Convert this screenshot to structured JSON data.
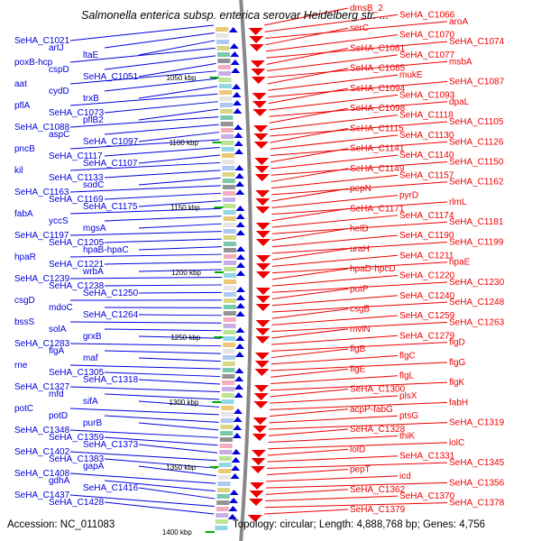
{
  "title": "Salmonella enterica subsp. enterica serovar Heidelberg str. ...",
  "footer": {
    "accession": "Accession: NC_011083",
    "topology": "Topology: circular; Length: 4,888,768 bp; Genes: 4,756"
  },
  "colors": {
    "forward_strand": "#0000dd",
    "reverse_strand": "#ee0000",
    "backbone": "#888888",
    "tick": "#00aa00"
  },
  "scale_ticks": [
    "1050 kbp",
    "1100 kbp",
    "1150 kbp",
    "1200 kbp",
    "1250 kbp",
    "1300 kbp",
    "1350 kbp",
    "1400 kbp"
  ],
  "left_labels": [
    "SeHA_C1021",
    "artJ",
    "ltaE",
    "poxB-hcp",
    "cspD",
    "SeHA_C1051",
    "aat",
    "cydD",
    "trxB",
    "pflA",
    "SeHA_C1073",
    "pflB2",
    "SeHA_C1088",
    "aspC",
    "SeHA_C1097",
    "pncB",
    "SeHA_C1117",
    "SeHA_C1107",
    "kil",
    "SeHA_C1133",
    "sodC",
    "SeHA_C1163",
    "SeHA_C1169",
    "SeHA_C1175",
    "fabA",
    "yccS",
    "mgsA",
    "SeHA_C1197",
    "SeHA_C1205",
    "hpaB-hpaC",
    "hpaR",
    "SeHA_C1221",
    "wrbA",
    "SeHA_C1239",
    "SeHA_C1238",
    "SeHA_C1250",
    "csgD",
    "mdoC",
    "SeHA_C1264",
    "bssS",
    "solA",
    "grxB",
    "SeHA_C1283",
    "flgA",
    "maf",
    "rne",
    "SeHA_C1305",
    "SeHA_C1318",
    "SeHA_C1327",
    "mfd",
    "sifA",
    "potC",
    "potD",
    "purB",
    "SeHA_C1348",
    "SeHA_C1359",
    "SeHA_C1373",
    "SeHA_C1402",
    "SeHA_C1383",
    "gapA",
    "SeHA_C1408",
    "gdhA",
    "SeHA_C1416",
    "SeHA_C1437",
    "SeHA_C1428"
  ],
  "right_labels": [
    "dmsB_2",
    "SeHA_C1066",
    "aroA",
    "serC",
    "SeHA_C1070",
    "SeHA_C1074",
    "SeHA_C1081",
    "SeHA_C1077",
    "msbA",
    "SeHA_C1085",
    "mukE",
    "SeHA_C1087",
    "SeHA_C1094",
    "SeHA_C1093",
    "dpaL",
    "SeHA_C1098",
    "SeHA_C1118",
    "SeHA_C1105",
    "SeHA_C1115",
    "SeHA_C1130",
    "SeHA_C1126",
    "SeHA_C1141",
    "SeHA_C1140",
    "SeHA_C1150",
    "SeHA_C1149",
    "SeHA_C1157",
    "SeHA_C1162",
    "pepN",
    "pyrD",
    "rlmL",
    "SeHA_C1171",
    "SeHA_C1174",
    "SeHA_C1181",
    "helD",
    "SeHA_C1190",
    "SeHA_C1199",
    "uraH",
    "SeHA_C1211",
    "hpaE",
    "hpaD-hpcD",
    "SeHA_C1220",
    "SeHA_C1230",
    "putP",
    "SeHA_C1240",
    "SeHA_C1248",
    "csgB",
    "SeHA_C1259",
    "SeHA_C1263",
    "mviN",
    "SeHA_C1279",
    "flgD",
    "flgB",
    "flgC",
    "flgG",
    "flgE",
    "flgL",
    "flgK",
    "SeHA_C1300",
    "plsX",
    "fabH",
    "acpP-fabG",
    "ptsG",
    "SeHA_C1319",
    "SeHA_C1328",
    "thiK",
    "lolC",
    "lolD",
    "SeHA_C1331",
    "SeHA_C1345",
    "pepT",
    "icd",
    "SeHA_C1356",
    "SeHA_C1362",
    "SeHA_C1370",
    "SeHA_C1378",
    "SeHA_C1379"
  ]
}
